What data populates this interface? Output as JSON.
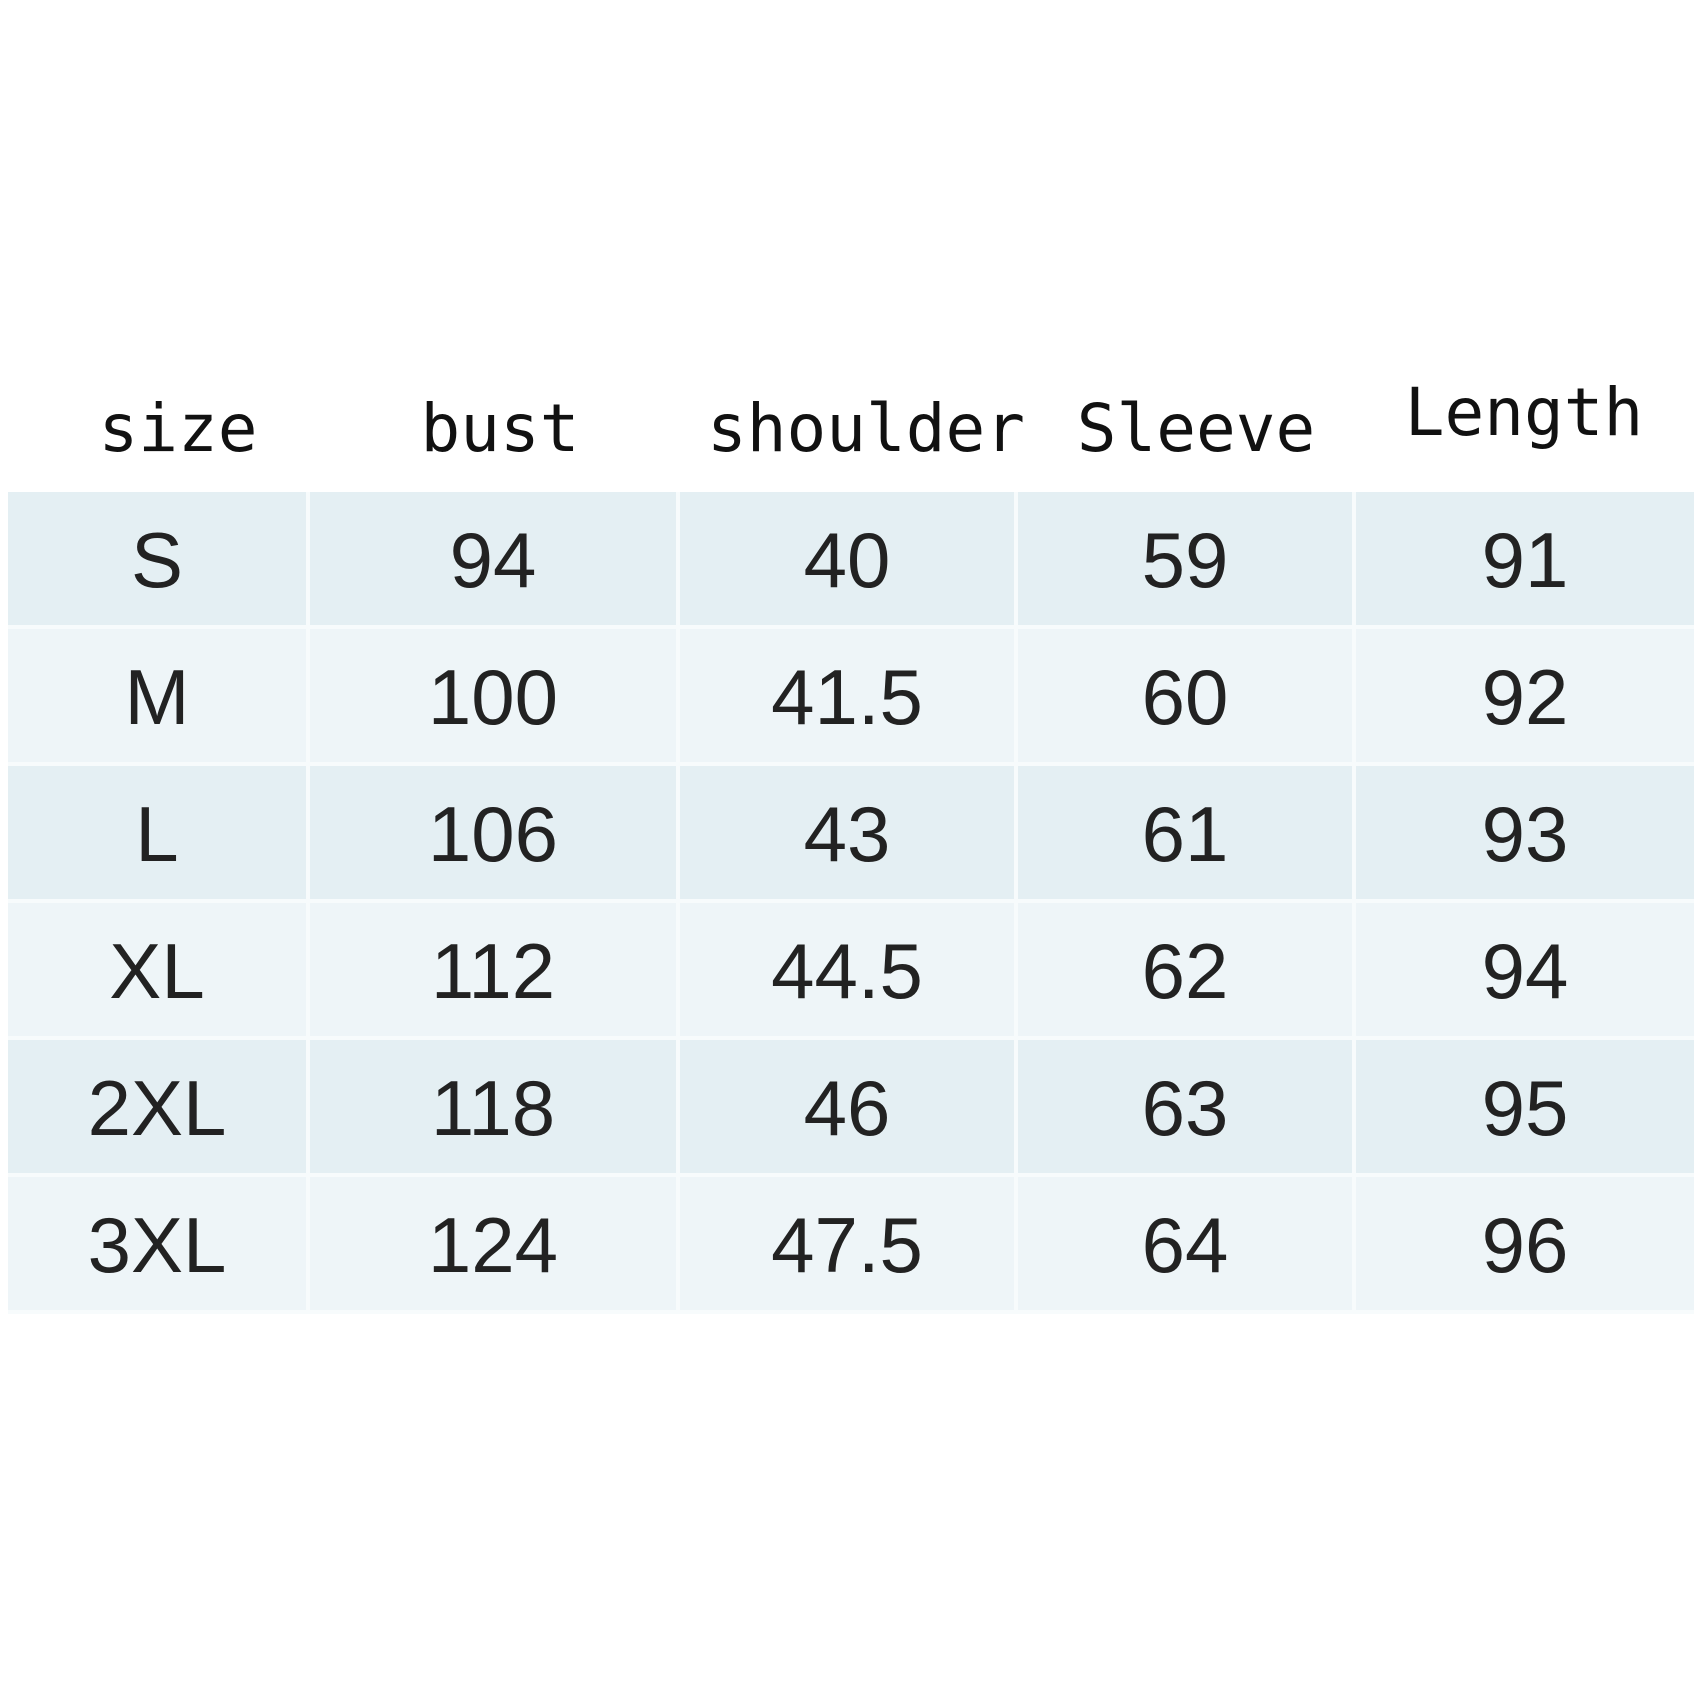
{
  "table": {
    "headers": [
      "size",
      "bust",
      "shoulder",
      "Sleeve",
      "Length"
    ],
    "rows": [
      [
        "S",
        "94",
        "40",
        "59",
        "91"
      ],
      [
        "M",
        "100",
        "41.5",
        "60",
        "92"
      ],
      [
        "L",
        "106",
        "43",
        "61",
        "93"
      ],
      [
        "XL",
        "112",
        "44.5",
        "62",
        "94"
      ],
      [
        "2XL",
        "118",
        "46",
        "63",
        "95"
      ],
      [
        "3XL",
        "124",
        "47.5",
        "64",
        "96"
      ]
    ]
  },
  "colors": {
    "row_dark": "#e4eff3",
    "row_light": "#eef5f8",
    "text": "#222222"
  }
}
